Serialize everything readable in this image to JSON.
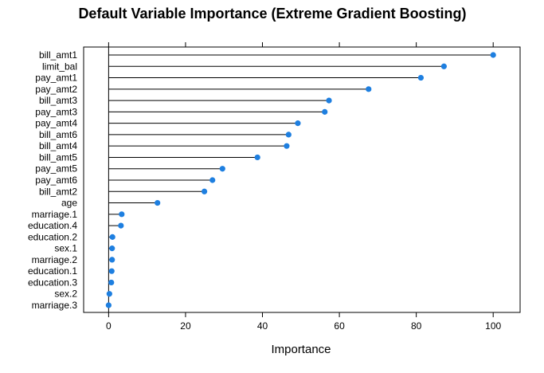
{
  "chart_data": {
    "type": "dot",
    "title": "Default Variable Importance (Extreme Gradient Boosting)",
    "xlabel": "Importance",
    "ylabel": "",
    "xlim": [
      -6.5,
      107
    ],
    "xticks": [
      0,
      20,
      40,
      60,
      80,
      100
    ],
    "grid": false,
    "legend": "none",
    "point_color": "#1E7FE0",
    "line_color": "#000000",
    "categories": [
      "bill_amt1",
      "limit_bal",
      "pay_amt1",
      "pay_amt2",
      "bill_amt3",
      "pay_amt3",
      "pay_amt4",
      "bill_amt6",
      "bill_amt4",
      "bill_amt5",
      "pay_amt5",
      "pay_amt6",
      "bill_amt2",
      "age",
      "marriage.1",
      "education.4",
      "education.2",
      "sex.1",
      "marriage.2",
      "education.1",
      "education.3",
      "sex.2",
      "marriage.3"
    ],
    "values": [
      100,
      87.2,
      81.2,
      67.6,
      57.3,
      56.2,
      49.2,
      46.8,
      46.3,
      38.7,
      29.6,
      27.0,
      24.9,
      12.7,
      3.4,
      3.2,
      1.0,
      0.9,
      0.9,
      0.8,
      0.7,
      0.2,
      0.0
    ]
  }
}
